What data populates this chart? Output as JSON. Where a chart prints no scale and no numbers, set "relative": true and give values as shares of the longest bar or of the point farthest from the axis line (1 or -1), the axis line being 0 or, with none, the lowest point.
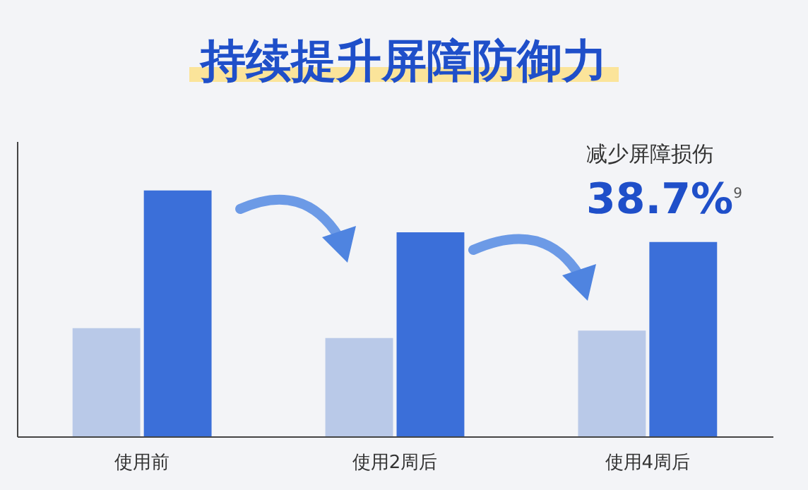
{
  "chart_data": {
    "type": "bar",
    "title": "持续提升屏障防御力",
    "categories": [
      "使用前",
      "使用2周后",
      "使用4周后"
    ],
    "relative": true,
    "series": [
      {
        "color": "#b9c9e8",
        "values": [
          0.44,
          0.4,
          0.43
        ]
      },
      {
        "color": "#3b6fd9",
        "values": [
          1,
          0.83,
          0.79
        ]
      }
    ],
    "annotations": [
      "减少屏障损伤",
      "38.7%$^{9}$"
    ],
    "legend": false,
    "grid": false
  }
}
